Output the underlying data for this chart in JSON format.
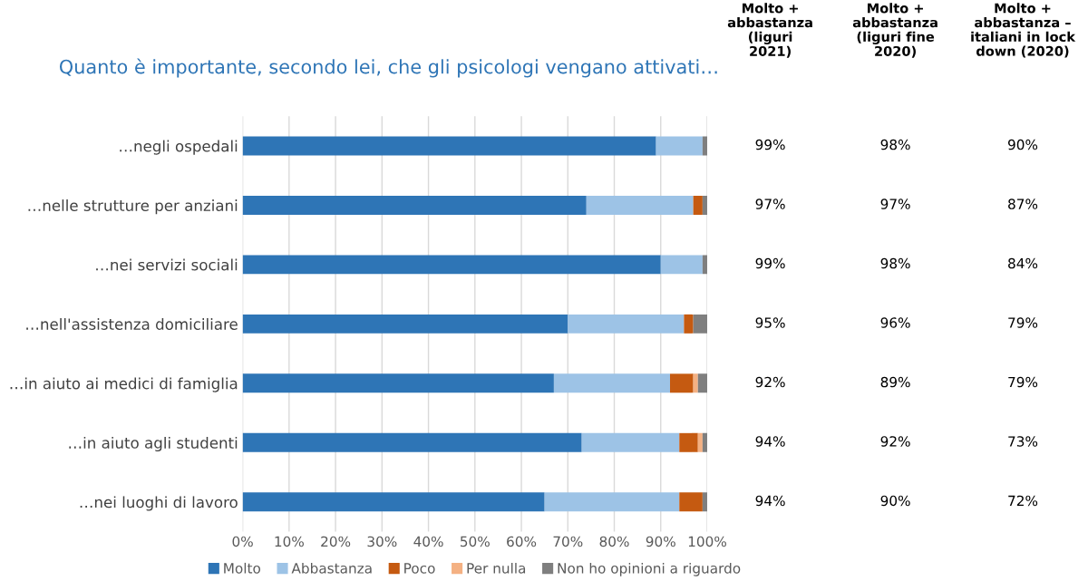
{
  "chart_data": {
    "type": "bar",
    "orientation": "horizontal",
    "stacked": true,
    "title": "Quanto è importante, secondo lei, che gli psicologi vengano attivati…",
    "categories": [
      "…negli ospedali",
      "…nelle strutture per anziani",
      "…nei servizi sociali",
      "…nell'assistenza domiciliare",
      "…in aiuto ai medici di famiglia",
      "…in aiuto agli studenti",
      "…nei luoghi di lavoro"
    ],
    "series": [
      {
        "name": "Molto",
        "color": "#2e75b6",
        "values": [
          89,
          74,
          90,
          70,
          67,
          73,
          65
        ]
      },
      {
        "name": "Abbastanza",
        "color": "#9dc3e6",
        "values": [
          10,
          23,
          9,
          25,
          25,
          21,
          29
        ]
      },
      {
        "name": "Poco",
        "color": "#c55a11",
        "values": [
          0,
          2,
          0,
          2,
          5,
          4,
          5
        ]
      },
      {
        "name": "Per nulla",
        "color": "#f4b183",
        "values": [
          0,
          0,
          0,
          0,
          1,
          1,
          0
        ]
      },
      {
        "name": "Non ho opinioni a riguardo",
        "color": "#7f7f7f",
        "values": [
          1,
          1,
          1,
          3,
          2,
          1,
          1
        ]
      }
    ],
    "xlim": [
      0,
      100
    ],
    "xticks": [
      {
        "value": 0,
        "label": "0%"
      },
      {
        "value": 10,
        "label": "10%"
      },
      {
        "value": 20,
        "label": "20%"
      },
      {
        "value": 30,
        "label": "30%"
      },
      {
        "value": 40,
        "label": "40%"
      },
      {
        "value": 50,
        "label": "50%"
      },
      {
        "value": 60,
        "label": "60%"
      },
      {
        "value": 70,
        "label": "70%"
      },
      {
        "value": 80,
        "label": "80%"
      },
      {
        "value": 90,
        "label": "90%"
      },
      {
        "value": 100,
        "label": "100%"
      }
    ],
    "grid": "x",
    "legend": "bottom",
    "annotations": [
      "Molto +\nabbastanza\n(liguri\n2021)",
      "Molto +\nabbastanza\n(liguri fine\n2020)",
      "Molto +\nabbastanza –\nitaliani in lock\ndown (2020)",
      "99%",
      "98%",
      "90%",
      "97%",
      "97%",
      "87%",
      "99%",
      "98%",
      "84%",
      "95%",
      "96%",
      "79%",
      "92%",
      "89%",
      "79%",
      "94%",
      "92%",
      "73%",
      "94%",
      "90%",
      "72%"
    ]
  }
}
